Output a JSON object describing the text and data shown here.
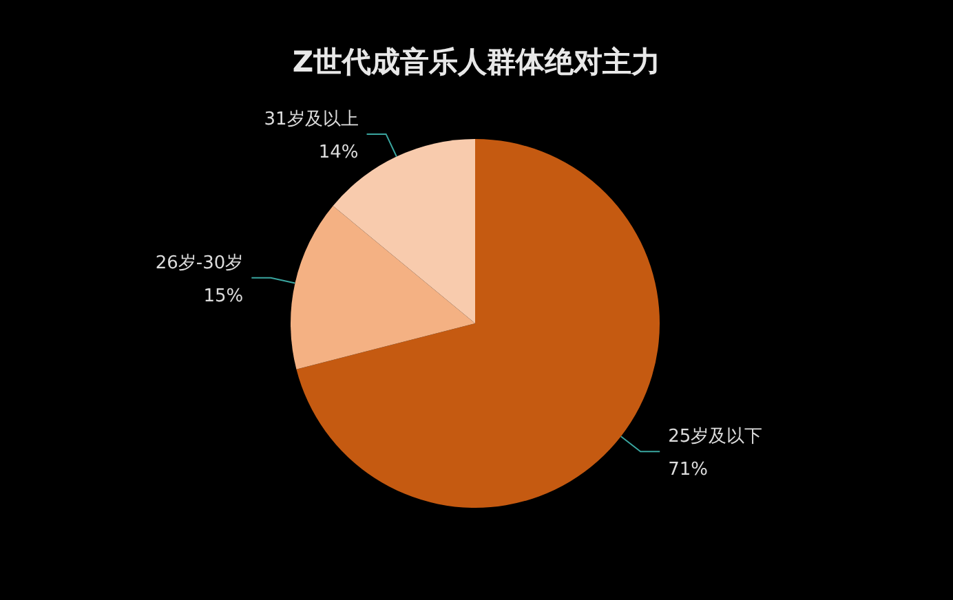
{
  "chart_data": {
    "type": "pie",
    "title": "Z世代成音乐人群体绝对主力",
    "categories": [
      "25岁及以下",
      "26岁-30岁",
      "31岁及以上"
    ],
    "values": [
      71,
      15,
      14
    ],
    "value_labels": [
      "71%",
      "15%",
      "14%"
    ],
    "colors": [
      "#c55a11",
      "#f4b183",
      "#f8cbad"
    ]
  }
}
